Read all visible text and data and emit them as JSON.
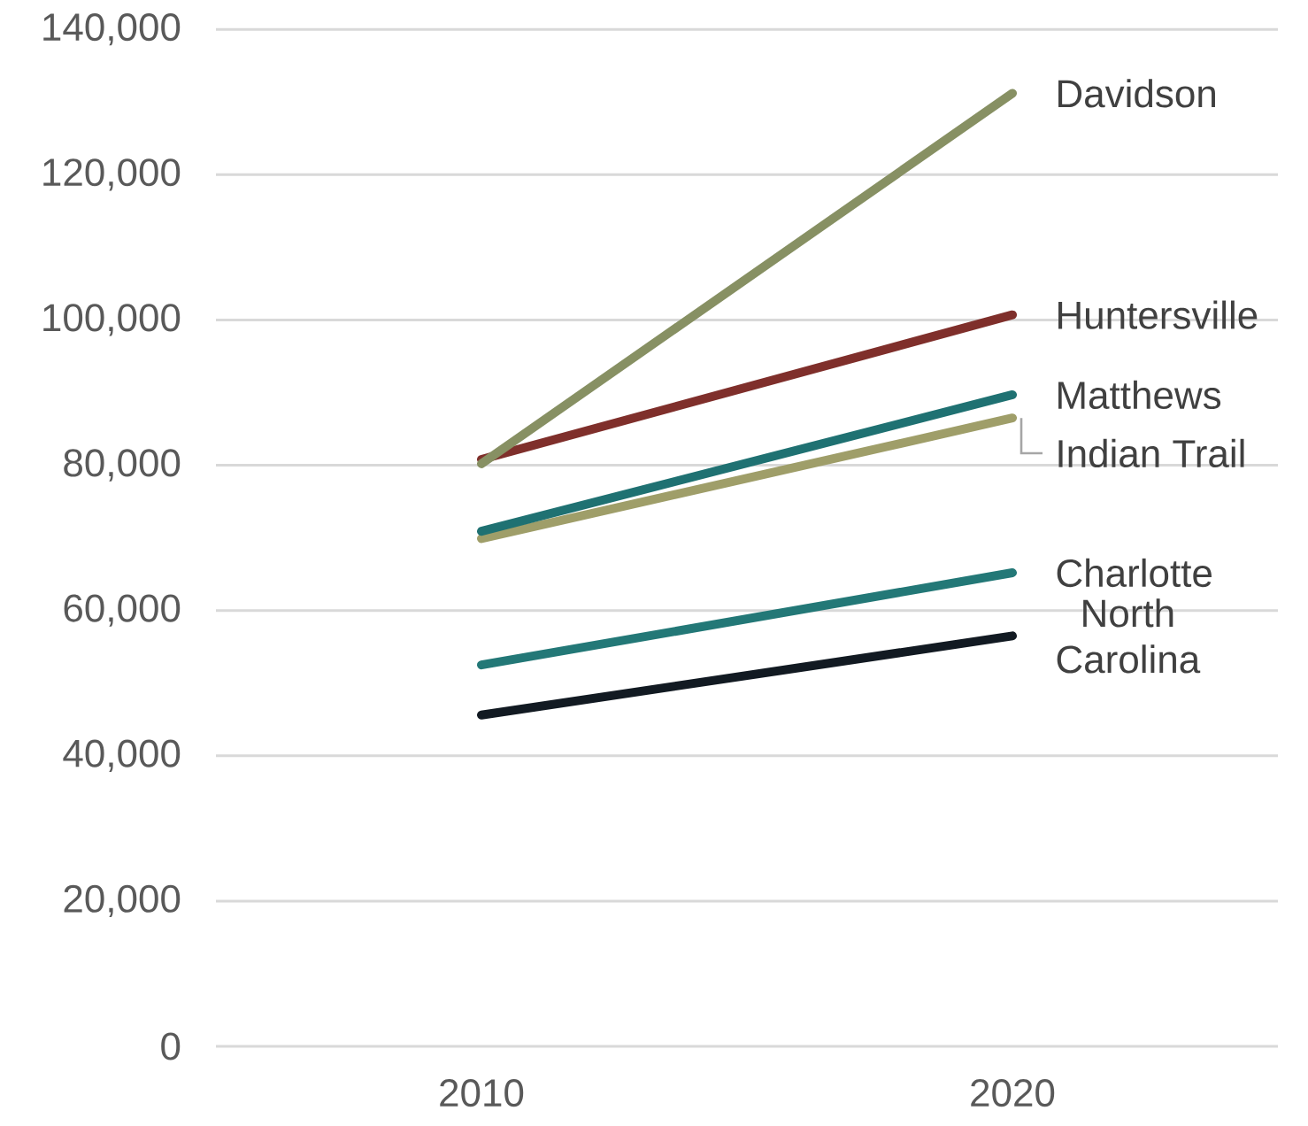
{
  "chart_data": {
    "type": "line",
    "categories": [
      "2010",
      "2020"
    ],
    "ylim": [
      0,
      140000
    ],
    "yticks": [
      {
        "value": 0,
        "label": "0"
      },
      {
        "value": 20000,
        "label": "20,000"
      },
      {
        "value": 40000,
        "label": "40,000"
      },
      {
        "value": 60000,
        "label": "60,000"
      },
      {
        "value": 80000,
        "label": "80,000"
      },
      {
        "value": 100000,
        "label": "100,000"
      },
      {
        "value": 120000,
        "label": "120,000"
      },
      {
        "value": 140000,
        "label": "140,000"
      }
    ],
    "grid": "y",
    "legend": false,
    "marker": "none",
    "line_style": "solid",
    "series": [
      {
        "name": "Davidson",
        "color": "#879063",
        "values": [
          80200,
          131200
        ]
      },
      {
        "name": "Huntersville",
        "color": "#7f2f2b",
        "values": [
          80800,
          100700
        ]
      },
      {
        "name": "Matthews",
        "color": "#1f7172",
        "values": [
          70900,
          89700
        ]
      },
      {
        "name": "Indian Trail",
        "color": "#9f9e69",
        "values": [
          69900,
          86500
        ]
      },
      {
        "name": "Charlotte",
        "color": "#237877",
        "values": [
          52500,
          65200
        ]
      },
      {
        "name": "North Carolina",
        "color": "#121a22",
        "values": [
          45600,
          56500
        ]
      }
    ]
  }
}
